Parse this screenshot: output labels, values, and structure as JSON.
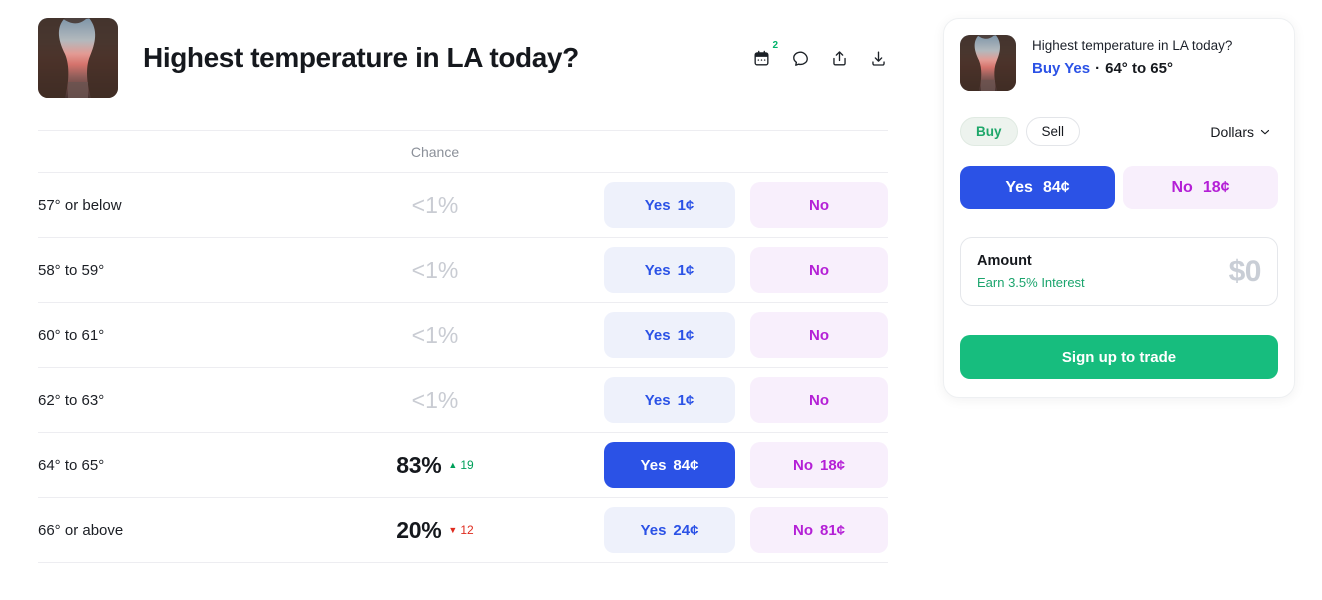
{
  "colors": {
    "accent_blue": "#2b52e6",
    "yes_light_bg": "#eef1fb",
    "accent_magenta": "#b41fd6",
    "no_light_bg": "#f8effc",
    "green_text": "#00a05a",
    "green_button": "#17bd7e",
    "red_delta": "#df2b1e",
    "muted_gray": "#8b9099",
    "dim_gray": "#c9ccd3"
  },
  "header": {
    "title": "Highest temperature in LA today?",
    "calendar_badge": "2"
  },
  "table": {
    "chance_header": "Chance",
    "rows": [
      {
        "label": "57° or below",
        "chance": "<1%",
        "dim": true,
        "yes_label": "Yes",
        "yes_price": "1¢",
        "no_label": "No",
        "no_price": "",
        "highlight": false
      },
      {
        "label": "58° to 59°",
        "chance": "<1%",
        "dim": true,
        "yes_label": "Yes",
        "yes_price": "1¢",
        "no_label": "No",
        "no_price": "",
        "highlight": false
      },
      {
        "label": "60° to 61°",
        "chance": "<1%",
        "dim": true,
        "yes_label": "Yes",
        "yes_price": "1¢",
        "no_label": "No",
        "no_price": "",
        "highlight": false
      },
      {
        "label": "62° to 63°",
        "chance": "<1%",
        "dim": true,
        "yes_label": "Yes",
        "yes_price": "1¢",
        "no_label": "No",
        "no_price": "",
        "highlight": false
      },
      {
        "label": "64° to 65°",
        "chance": "83%",
        "dim": false,
        "delta_dir": "up",
        "delta_value": "19",
        "yes_label": "Yes",
        "yes_price": "84¢",
        "no_label": "No",
        "no_price": "18¢",
        "highlight": true
      },
      {
        "label": "66° or above",
        "chance": "20%",
        "dim": false,
        "delta_dir": "down",
        "delta_value": "12",
        "yes_label": "Yes",
        "yes_price": "24¢",
        "no_label": "No",
        "no_price": "81¢",
        "highlight": false
      }
    ]
  },
  "sidebar": {
    "title": "Highest temperature in LA today?",
    "position_action": "Buy Yes",
    "position_separator": "·",
    "position_outcome": "64° to 65°",
    "buy_tab": "Buy",
    "sell_tab": "Sell",
    "currency": "Dollars",
    "yes_label": "Yes",
    "yes_price": "84¢",
    "no_label": "No",
    "no_price": "18¢",
    "amount_label": "Amount",
    "amount_sublabel": "Earn 3.5% Interest",
    "amount_value": "$0",
    "cta": "Sign up to trade"
  }
}
